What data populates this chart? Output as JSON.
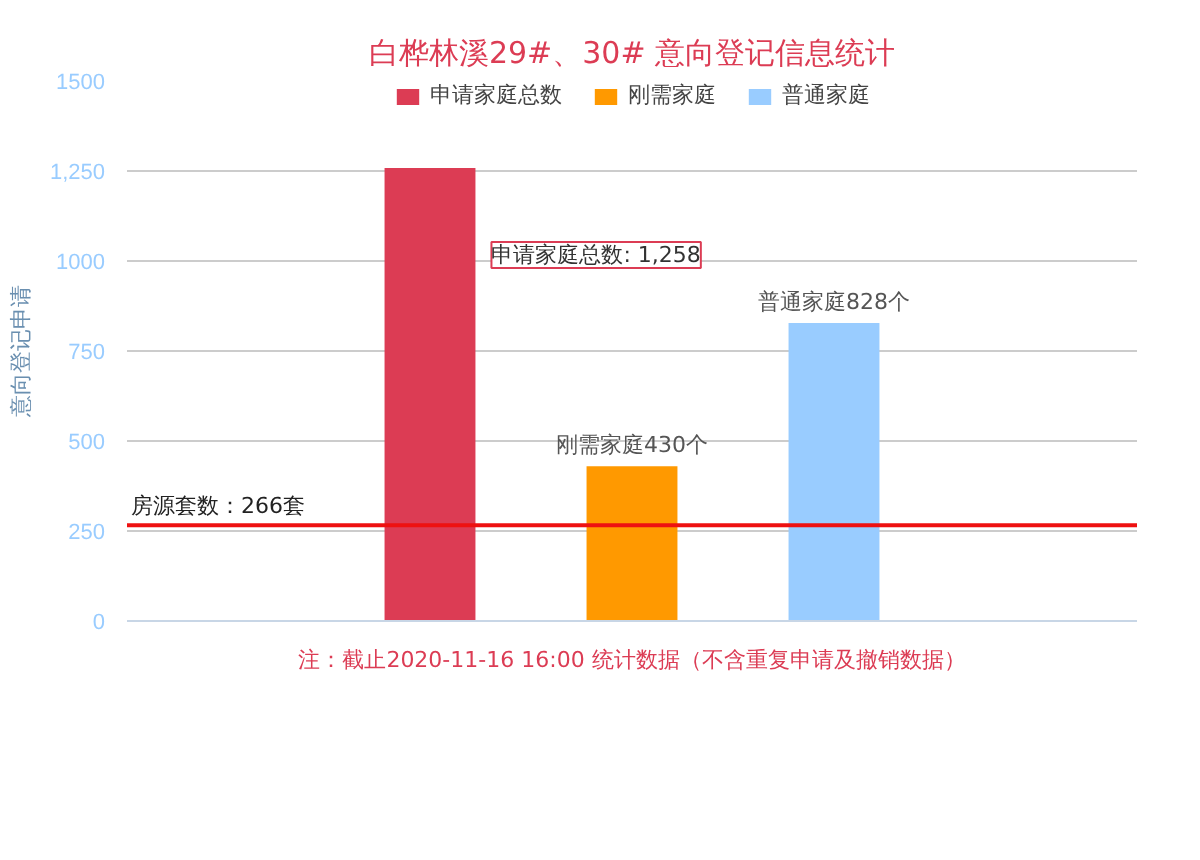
{
  "chart_data": {
    "type": "bar",
    "title": "白桦林溪29#、30# 意向登记信息统计",
    "ylabel": "意向登记申请",
    "categories": [
      null
    ],
    "series": [
      {
        "name": "申请家庭总数",
        "color": "#dc3c54",
        "values": [
          1258
        ],
        "value_labels": [
          null
        ]
      },
      {
        "name": "刚需家庭",
        "color": "#ff9900",
        "values": [
          430
        ],
        "value_labels": [
          "刚需家庭430个"
        ]
      },
      {
        "name": "普通家庭",
        "color": "#99ccff",
        "values": [
          828
        ],
        "value_labels": [
          "普通家庭828个"
        ]
      }
    ],
    "ylim": [
      0,
      1500
    ],
    "yticks": [
      0,
      250,
      500,
      750,
      1000,
      {
        "value": 1250,
        "label": "1,250"
      },
      1500
    ],
    "tick_labels": "y",
    "grid": "y",
    "legend": "top",
    "ref_lines": [
      {
        "axis": "y",
        "value": 266,
        "label": "房源套数：266套",
        "color": "#ee1111"
      }
    ],
    "annotations": [
      "申请家庭总数: 1,258",
      "注：截止2020-11-16 16:00 统计数据（不含重复申请及撤销数据）"
    ]
  }
}
